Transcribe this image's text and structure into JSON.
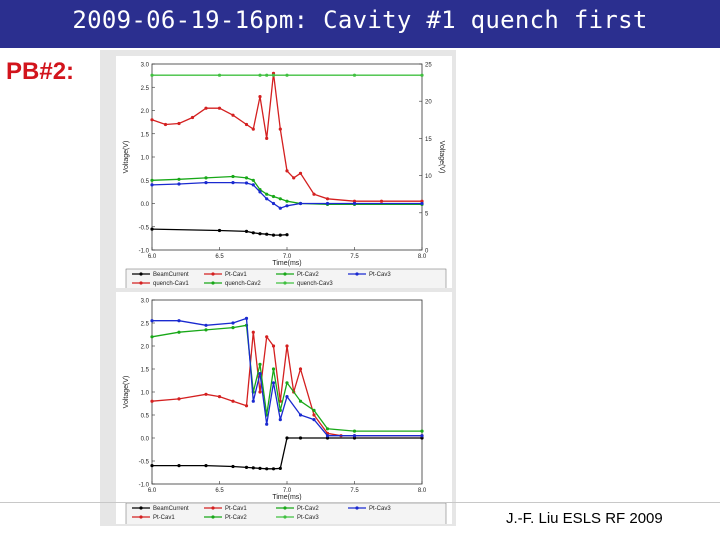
{
  "slide": {
    "title": "2009-06-19-16pm: Cavity #1 quench first",
    "subtitle_label": "PB#2:",
    "footer": "J.-F. Liu ESLS RF 2009",
    "colors": {
      "title_bar": "#2b2f8f",
      "label_red": "#d2141c",
      "beam": "#000000",
      "cav1": "#d42020",
      "cav2": "#18a818",
      "cav3": "#1a2ad0",
      "quench3": "#40c040"
    }
  },
  "chart_data": [
    {
      "type": "line",
      "xlabel": "Time(ms)",
      "ylabel": "Voltage(V)",
      "y2label": "Voltage(V)",
      "xlim": [
        6.0,
        8.0
      ],
      "ylim": [
        -1.0,
        3.0
      ],
      "y2lim": [
        0,
        25
      ],
      "xticks": [
        "6.0",
        "6.5",
        "7.0",
        "7.5",
        "8.0"
      ],
      "yticks": [
        "3.0",
        "2.5",
        "2.0",
        "1.5",
        "1.0",
        "0.5",
        "0.0",
        "-0.5",
        "-1.0"
      ],
      "y2ticks": [
        "25",
        "20",
        "15",
        "10",
        "5",
        "0"
      ],
      "legend_position": "bottom",
      "legend": [
        "BeamCurrent",
        "Pt-Cav1",
        "Pt-Cav2",
        "Pt-Cav3",
        "quench-Cav1",
        "quench-Cav2",
        "quench-Cav3"
      ],
      "series": [
        {
          "name": "BeamCurrent",
          "color": "#000000",
          "x": [
            6.0,
            6.5,
            6.7,
            6.75,
            6.8,
            6.85,
            6.9,
            6.95,
            7.0
          ],
          "y": [
            -0.55,
            -0.58,
            -0.6,
            -0.63,
            -0.65,
            -0.66,
            -0.68,
            -0.68,
            -0.67
          ]
        },
        {
          "name": "Pt-Cav1",
          "color": "#d42020",
          "x": [
            6.0,
            6.1,
            6.2,
            6.3,
            6.4,
            6.5,
            6.6,
            6.7,
            6.75,
            6.8,
            6.85,
            6.9,
            6.95,
            7.0,
            7.05,
            7.1,
            7.2,
            7.3,
            7.5,
            7.7,
            8.0
          ],
          "y": [
            1.8,
            1.7,
            1.72,
            1.85,
            2.05,
            2.05,
            1.9,
            1.7,
            1.6,
            2.3,
            1.4,
            2.8,
            1.6,
            0.7,
            0.55,
            0.65,
            0.2,
            0.1,
            0.05,
            0.05,
            0.05
          ]
        },
        {
          "name": "Pt-Cav2",
          "color": "#18a818",
          "x": [
            6.0,
            6.2,
            6.4,
            6.6,
            6.7,
            6.75,
            6.8,
            6.85,
            6.9,
            6.95,
            7.0,
            7.1,
            7.3,
            7.5,
            8.0
          ],
          "y": [
            0.5,
            0.52,
            0.55,
            0.58,
            0.55,
            0.5,
            0.3,
            0.2,
            0.15,
            0.1,
            0.05,
            0.0,
            -0.02,
            -0.02,
            -0.02
          ]
        },
        {
          "name": "Pt-Cav3",
          "color": "#1a2ad0",
          "x": [
            6.0,
            6.2,
            6.4,
            6.6,
            6.7,
            6.75,
            6.8,
            6.85,
            6.9,
            6.95,
            7.0,
            7.1,
            7.3,
            7.5,
            8.0
          ],
          "y": [
            0.4,
            0.42,
            0.45,
            0.45,
            0.44,
            0.4,
            0.25,
            0.1,
            0.0,
            -0.1,
            -0.05,
            0.0,
            0.0,
            0.0,
            0.0
          ]
        },
        {
          "name": "quench-Cav3",
          "color": "#40c040",
          "axis": "y2",
          "x": [
            6.0,
            6.5,
            6.8,
            6.85,
            6.9,
            7.0,
            7.5,
            8.0
          ],
          "y": [
            23.5,
            23.5,
            23.5,
            23.5,
            23.5,
            23.5,
            23.5,
            23.5
          ]
        }
      ]
    },
    {
      "type": "line",
      "xlabel": "Time(ms)",
      "ylabel": "Voltage(V)",
      "xlim": [
        6.0,
        8.0
      ],
      "ylim": [
        -1.0,
        3.0
      ],
      "xticks": [
        "6.0",
        "6.5",
        "7.0",
        "7.5",
        "8.0"
      ],
      "yticks": [
        "3.0",
        "2.5",
        "2.0",
        "1.5",
        "1.0",
        "0.5",
        "0.0",
        "-0.5",
        "-1.0"
      ],
      "legend_position": "bottom",
      "legend": [
        "BeamCurrent",
        "Pt-Cav1",
        "Pt-Cav2",
        "Pt-Cav3",
        "Pt-Cav1",
        "Pt-Cav2",
        "Pt-Cav3"
      ],
      "series": [
        {
          "name": "BeamCurrent",
          "color": "#000000",
          "x": [
            6.0,
            6.2,
            6.4,
            6.6,
            6.7,
            6.75,
            6.8,
            6.85,
            6.9,
            6.95,
            7.0,
            7.1,
            7.3,
            7.5,
            8.0
          ],
          "y": [
            -0.6,
            -0.6,
            -0.6,
            -0.62,
            -0.64,
            -0.65,
            -0.66,
            -0.67,
            -0.67,
            -0.66,
            0.0,
            0.0,
            0.0,
            0.0,
            0.0
          ]
        },
        {
          "name": "Pt-Cav1",
          "color": "#d42020",
          "x": [
            6.0,
            6.2,
            6.4,
            6.5,
            6.6,
            6.7,
            6.75,
            6.8,
            6.85,
            6.9,
            6.95,
            7.0,
            7.05,
            7.1,
            7.2,
            7.3,
            7.4,
            7.5,
            8.0
          ],
          "y": [
            0.8,
            0.85,
            0.95,
            0.9,
            0.8,
            0.7,
            2.3,
            1.0,
            2.2,
            2.0,
            0.8,
            2.0,
            1.0,
            1.5,
            0.5,
            0.1,
            0.05,
            0.05,
            0.05
          ]
        },
        {
          "name": "Pt-Cav2",
          "color": "#18a818",
          "x": [
            6.0,
            6.2,
            6.4,
            6.6,
            6.7,
            6.75,
            6.8,
            6.85,
            6.9,
            6.95,
            7.0,
            7.1,
            7.2,
            7.3,
            7.5,
            8.0
          ],
          "y": [
            2.2,
            2.3,
            2.35,
            2.4,
            2.45,
            1.0,
            1.6,
            0.5,
            1.5,
            0.6,
            1.2,
            0.8,
            0.6,
            0.2,
            0.15,
            0.15
          ]
        },
        {
          "name": "Pt-Cav3",
          "color": "#1a2ad0",
          "x": [
            6.0,
            6.2,
            6.4,
            6.6,
            6.7,
            6.75,
            6.8,
            6.85,
            6.9,
            6.95,
            7.0,
            7.1,
            7.2,
            7.3,
            7.5,
            8.0
          ],
          "y": [
            2.55,
            2.55,
            2.45,
            2.5,
            2.6,
            0.8,
            1.4,
            0.3,
            1.2,
            0.4,
            0.9,
            0.5,
            0.4,
            0.05,
            0.05,
            0.05
          ]
        }
      ]
    }
  ]
}
